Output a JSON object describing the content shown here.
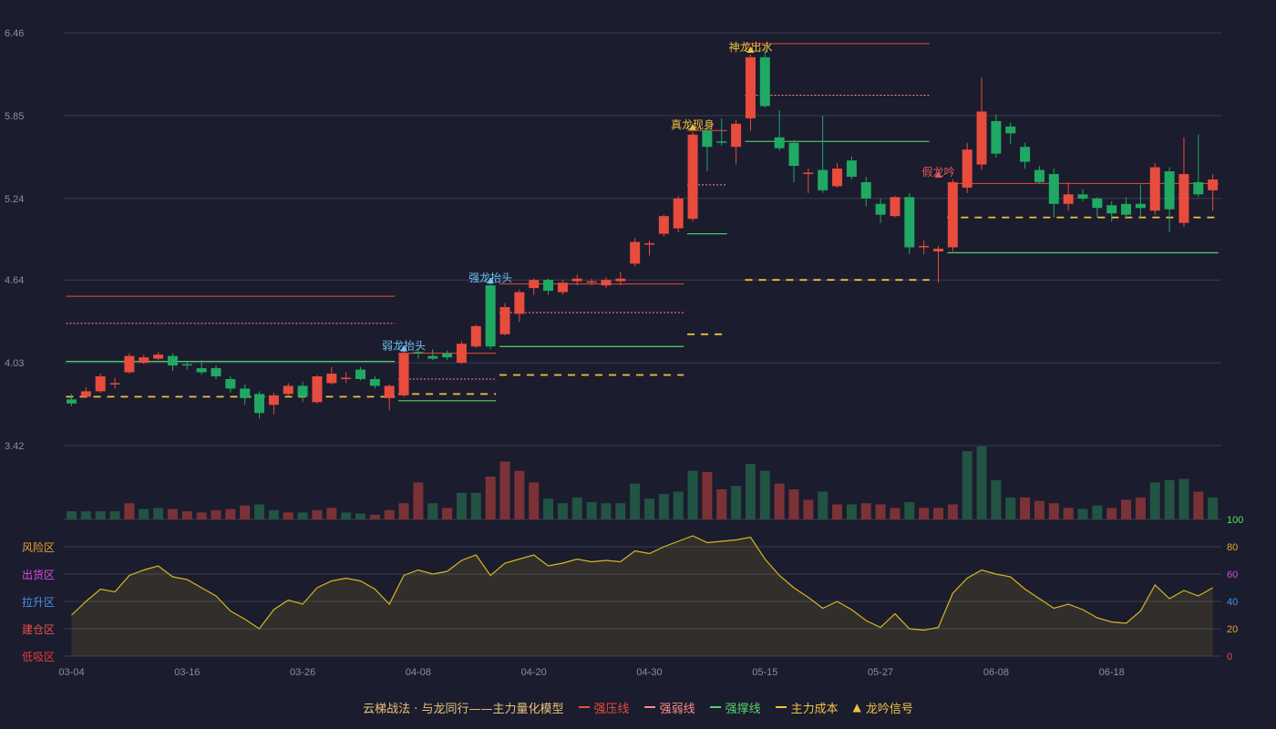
{
  "chart_data": {
    "type": "candlestick",
    "price_axis": {
      "ticks": [
        3.42,
        4.03,
        4.64,
        5.24,
        5.85,
        6.46
      ],
      "ylim": [
        3.42,
        6.46
      ]
    },
    "indicator_axis": {
      "ticks": [
        0,
        20,
        40,
        60,
        80,
        100
      ],
      "ylim": [
        0,
        100
      ],
      "zones": [
        "低吸区",
        "建仓区",
        "拉升区",
        "出货区",
        "风险区"
      ]
    },
    "x_tick_labels": [
      {
        "index": 0,
        "label": "03-04"
      },
      {
        "index": 8,
        "label": "03-16"
      },
      {
        "index": 16,
        "label": "03-26"
      },
      {
        "index": 24,
        "label": "04-08"
      },
      {
        "index": 32,
        "label": "04-20"
      },
      {
        "index": 40,
        "label": "04-30"
      },
      {
        "index": 48,
        "label": "05-15"
      },
      {
        "index": 56,
        "label": "05-27"
      },
      {
        "index": 64,
        "label": "06-08"
      },
      {
        "index": 72,
        "label": "06-18"
      }
    ],
    "candles": [
      [
        3.76,
        3.73,
        3.8,
        3.71
      ],
      [
        3.78,
        3.82,
        3.85,
        3.77
      ],
      [
        3.82,
        3.93,
        3.95,
        3.81
      ],
      [
        3.88,
        3.88,
        3.92,
        3.84
      ],
      [
        3.96,
        4.08,
        4.1,
        3.95
      ],
      [
        4.03,
        4.07,
        4.09,
        4.02
      ],
      [
        4.06,
        4.09,
        4.11,
        4.05
      ],
      [
        4.08,
        4.01,
        4.1,
        3.97
      ],
      [
        4.02,
        4.01,
        4.04,
        3.98
      ],
      [
        3.99,
        3.96,
        4.05,
        3.94
      ],
      [
        3.99,
        3.93,
        4.01,
        3.91
      ],
      [
        3.91,
        3.84,
        3.93,
        3.81
      ],
      [
        3.84,
        3.77,
        3.87,
        3.72
      ],
      [
        3.8,
        3.66,
        3.82,
        3.62
      ],
      [
        3.72,
        3.79,
        3.81,
        3.65
      ],
      [
        3.8,
        3.86,
        3.88,
        3.78
      ],
      [
        3.86,
        3.78,
        3.89,
        3.74
      ],
      [
        3.74,
        3.93,
        3.94,
        3.73
      ],
      [
        3.88,
        3.95,
        4.0,
        3.87
      ],
      [
        3.92,
        3.92,
        3.96,
        3.88
      ],
      [
        3.98,
        3.91,
        4.0,
        3.9
      ],
      [
        3.91,
        3.86,
        3.93,
        3.84
      ],
      [
        3.77,
        3.86,
        3.87,
        3.68
      ],
      [
        3.79,
        4.1,
        4.12,
        3.78
      ],
      [
        4.11,
        4.1,
        4.13,
        4.06
      ],
      [
        4.08,
        4.06,
        4.13,
        4.05
      ],
      [
        4.1,
        4.07,
        4.12,
        4.05
      ],
      [
        4.03,
        4.17,
        4.19,
        4.02
      ],
      [
        4.15,
        4.3,
        4.31,
        4.14
      ],
      [
        4.6,
        4.15,
        4.61,
        4.13
      ],
      [
        4.24,
        4.44,
        4.47,
        4.23
      ],
      [
        4.39,
        4.55,
        4.57,
        4.33
      ],
      [
        4.58,
        4.64,
        4.65,
        4.53
      ],
      [
        4.64,
        4.56,
        4.65,
        4.53
      ],
      [
        4.55,
        4.62,
        4.64,
        4.53
      ],
      [
        4.63,
        4.65,
        4.68,
        4.6
      ],
      [
        4.62,
        4.63,
        4.65,
        4.6
      ],
      [
        4.6,
        4.64,
        4.66,
        4.58
      ],
      [
        4.63,
        4.65,
        4.7,
        4.6
      ],
      [
        4.76,
        4.92,
        4.95,
        4.74
      ],
      [
        4.9,
        4.91,
        4.93,
        4.82
      ],
      [
        4.98,
        5.11,
        5.12,
        4.96
      ],
      [
        5.02,
        5.24,
        5.26,
        4.99
      ],
      [
        5.09,
        5.71,
        5.73,
        5.07
      ],
      [
        5.74,
        5.62,
        5.78,
        5.44
      ],
      [
        5.66,
        5.65,
        5.83,
        5.63
      ],
      [
        5.62,
        5.79,
        5.82,
        5.49
      ],
      [
        5.83,
        6.28,
        6.3,
        5.74
      ],
      [
        6.28,
        5.92,
        6.35,
        5.91
      ],
      [
        5.69,
        5.61,
        5.89,
        5.59
      ],
      [
        5.65,
        5.48,
        5.67,
        5.36
      ],
      [
        5.43,
        5.43,
        5.46,
        5.28
      ],
      [
        5.45,
        5.3,
        5.85,
        5.28
      ],
      [
        5.33,
        5.46,
        5.5,
        5.32
      ],
      [
        5.52,
        5.4,
        5.55,
        5.38
      ],
      [
        5.36,
        5.24,
        5.4,
        5.18
      ],
      [
        5.2,
        5.12,
        5.24,
        5.06
      ],
      [
        5.11,
        5.25,
        5.26,
        5.1
      ],
      [
        5.25,
        4.88,
        5.28,
        4.83
      ],
      [
        4.89,
        4.89,
        4.93,
        4.83
      ],
      [
        4.85,
        4.87,
        4.89,
        4.62
      ],
      [
        4.88,
        5.36,
        5.38,
        4.85
      ],
      [
        5.32,
        5.6,
        5.65,
        5.28
      ],
      [
        5.49,
        5.88,
        6.13,
        5.45
      ],
      [
        5.81,
        5.57,
        5.86,
        5.54
      ],
      [
        5.77,
        5.72,
        5.8,
        5.64
      ],
      [
        5.62,
        5.51,
        5.65,
        5.46
      ],
      [
        5.45,
        5.36,
        5.48,
        5.35
      ],
      [
        5.42,
        5.2,
        5.46,
        5.1
      ],
      [
        5.2,
        5.27,
        5.36,
        5.15
      ],
      [
        5.27,
        5.24,
        5.31,
        5.22
      ],
      [
        5.24,
        5.17,
        5.25,
        5.1
      ],
      [
        5.19,
        5.13,
        5.22,
        5.07
      ],
      [
        5.2,
        5.12,
        5.25,
        5.09
      ],
      [
        5.2,
        5.17,
        5.34,
        5.1
      ],
      [
        5.15,
        5.47,
        5.5,
        5.12
      ],
      [
        5.44,
        5.16,
        5.47,
        4.99
      ],
      [
        5.06,
        5.42,
        5.69,
        5.03
      ],
      [
        5.36,
        5.27,
        5.71,
        5.25
      ],
      [
        5.3,
        5.38,
        5.42,
        5.15
      ]
    ],
    "volume_up": [
      false,
      false,
      false,
      false,
      true,
      false,
      false,
      true,
      true,
      true,
      true,
      true,
      true,
      false,
      false,
      true,
      false,
      true,
      true,
      false,
      false,
      true,
      true,
      true,
      true,
      false,
      true,
      false,
      false,
      true,
      true,
      true,
      true,
      false,
      false,
      false,
      false,
      false,
      false,
      false,
      false,
      false,
      false,
      false,
      true,
      true,
      false,
      false,
      false,
      true,
      true,
      true,
      false,
      true,
      false,
      true,
      true,
      true,
      false,
      true,
      true,
      true,
      false,
      false,
      false,
      false,
      true,
      true,
      true,
      true,
      false,
      false,
      true,
      true,
      true,
      false,
      false,
      false,
      true,
      false
    ],
    "volumes": [
      7,
      7,
      7,
      7,
      14,
      9,
      10,
      9,
      7,
      6,
      8,
      9,
      12,
      13,
      8,
      6,
      6,
      8,
      10,
      6,
      5,
      4,
      8,
      14,
      32,
      14,
      10,
      23,
      23,
      37,
      50,
      42,
      32,
      18,
      14,
      19,
      15,
      14,
      14,
      31,
      18,
      22,
      24,
      42,
      41,
      26,
      29,
      48,
      42,
      31,
      26,
      17,
      24,
      13,
      13,
      14,
      13,
      10,
      15,
      10,
      10,
      13,
      59,
      63,
      34,
      19,
      19,
      16,
      14,
      10,
      9,
      12,
      10,
      17,
      19,
      32,
      34,
      35,
      24,
      19
    ],
    "indicator": [
      30,
      40,
      49,
      47,
      59,
      63,
      66,
      58,
      56,
      50,
      44,
      33,
      27,
      20,
      34,
      41,
      38,
      50,
      55,
      57,
      55,
      49,
      38,
      59,
      63,
      60,
      62,
      70,
      74,
      59,
      68,
      71,
      74,
      66,
      68,
      71,
      69,
      70,
      69,
      77,
      75,
      80,
      84,
      88,
      83,
      84,
      85,
      87,
      71,
      59,
      50,
      43,
      35,
      40,
      34,
      26,
      21,
      31,
      20,
      19,
      21,
      46,
      57,
      63,
      60,
      58,
      49,
      42,
      35,
      38,
      34,
      28,
      25,
      24,
      33,
      52,
      42,
      48,
      44,
      50
    ],
    "levels": [
      {
        "type": "strong_resistance",
        "from": 0,
        "to": 22,
        "value": 4.52
      },
      {
        "type": "weak",
        "from": 0,
        "to": 22,
        "value": 4.32
      },
      {
        "type": "support",
        "from": 0,
        "to": 22,
        "value": 4.04
      },
      {
        "type": "cost",
        "from": 0,
        "to": 22,
        "value": 3.78
      },
      {
        "type": "strong_resistance",
        "from": 23,
        "to": 29,
        "value": 4.1
      },
      {
        "type": "weak",
        "from": 23,
        "to": 29,
        "value": 3.91
      },
      {
        "type": "support",
        "from": 23,
        "to": 29,
        "value": 3.75
      },
      {
        "type": "cost",
        "from": 23,
        "to": 29,
        "value": 3.8
      },
      {
        "type": "strong_resistance",
        "from": 30,
        "to": 42,
        "value": 4.61
      },
      {
        "type": "weak",
        "from": 30,
        "to": 42,
        "value": 4.4
      },
      {
        "type": "support",
        "from": 30,
        "to": 42,
        "value": 4.15
      },
      {
        "type": "cost",
        "from": 30,
        "to": 42,
        "value": 3.94
      },
      {
        "type": "strong_resistance",
        "from": 43,
        "to": 45,
        "value": 5.74
      },
      {
        "type": "weak",
        "from": 43,
        "to": 45,
        "value": 5.34
      },
      {
        "type": "support",
        "from": 43,
        "to": 45,
        "value": 4.98
      },
      {
        "type": "cost",
        "from": 43,
        "to": 45,
        "value": 4.24
      },
      {
        "type": "strong_resistance",
        "from": 47,
        "to": 59,
        "value": 6.38
      },
      {
        "type": "weak",
        "from": 47,
        "to": 59,
        "value": 6.0
      },
      {
        "type": "support",
        "from": 47,
        "to": 59,
        "value": 5.66
      },
      {
        "type": "cost",
        "from": 47,
        "to": 59,
        "value": 4.64
      },
      {
        "type": "strong_resistance",
        "from": 61,
        "to": 79,
        "value": 5.35
      },
      {
        "type": "support",
        "from": 61,
        "to": 79,
        "value": 4.84
      },
      {
        "type": "cost",
        "from": 61,
        "to": 79,
        "value": 5.1
      }
    ],
    "signals": [
      {
        "index": 23,
        "label": "弱龙抬头",
        "color": "#6fc3f2",
        "price": 4.1
      },
      {
        "index": 29,
        "label": "强龙抬头",
        "color": "#6fc3f2",
        "price": 4.6
      },
      {
        "index": 43,
        "label": "真龙现身",
        "color": "#f0c040",
        "price": 5.73
      },
      {
        "index": 47,
        "label": "神龙出水",
        "color": "#f0c040",
        "price": 6.3
      },
      {
        "index": 60,
        "label": "假龙吟",
        "color": "#e05a5a",
        "price": 5.38
      }
    ],
    "legend": [
      {
        "label": "云梯战法 · 与龙同行——主力量化模型",
        "marker": "none"
      },
      {
        "label": "强压线",
        "marker": "solid",
        "color": "#e84c3d"
      },
      {
        "label": "强弱线",
        "marker": "dashed",
        "color": "#ff8a8a"
      },
      {
        "label": "强撑线",
        "marker": "solid",
        "color": "#54d26b"
      },
      {
        "label": "主力成本",
        "marker": "dashed",
        "color": "#f0c040"
      },
      {
        "label": "龙吟信号",
        "marker": "triangle",
        "color": "#f0c040"
      }
    ],
    "colors": {
      "up": "#e84c3d",
      "down": "#1fa963",
      "volume_up": "#7b3236",
      "volume_down": "#215443",
      "indicator_line": "#d9b61f",
      "grid": "#3a3d52",
      "axis_text": "#8a8ea8"
    }
  }
}
